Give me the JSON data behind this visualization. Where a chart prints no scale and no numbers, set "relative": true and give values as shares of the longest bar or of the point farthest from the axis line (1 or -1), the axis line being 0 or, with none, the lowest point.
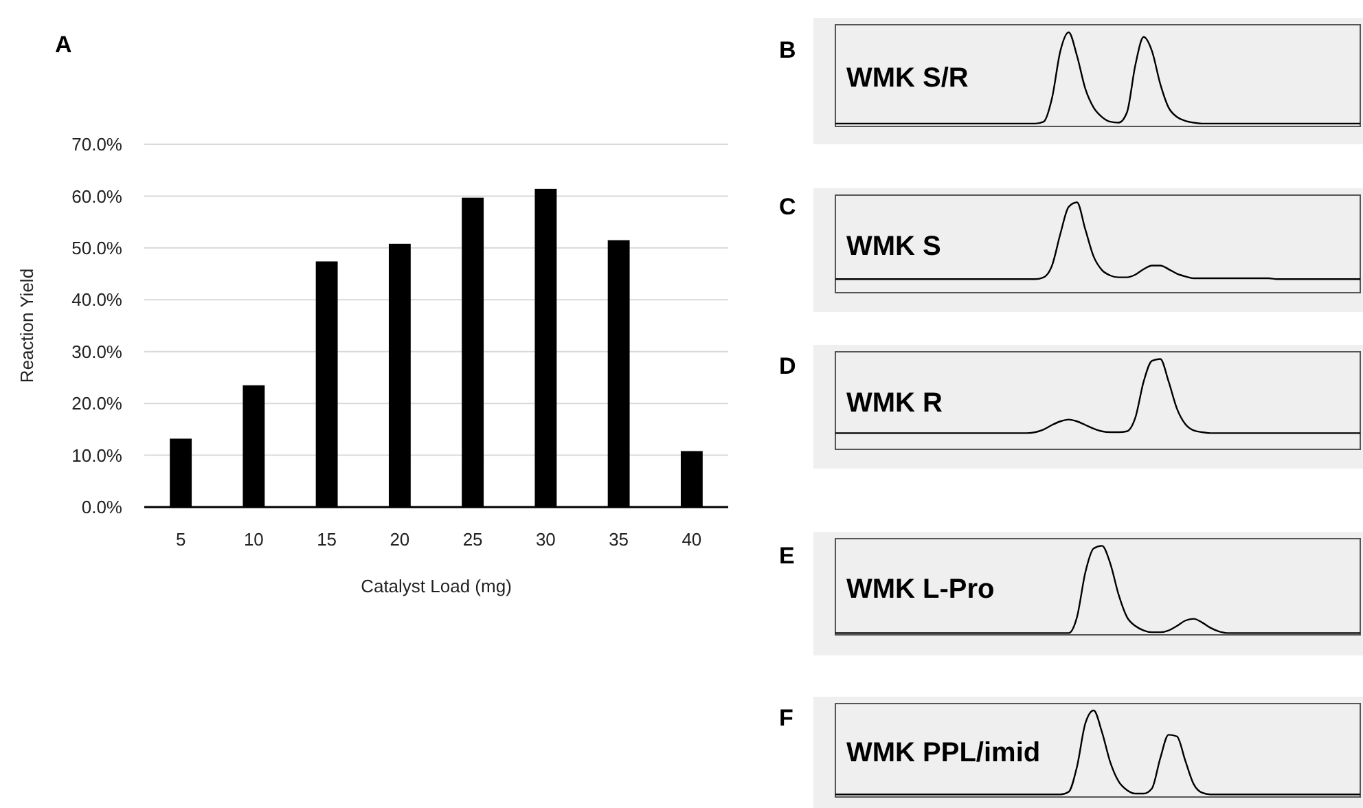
{
  "chart_data": [
    {
      "type": "bar",
      "title": "A",
      "xlabel": "Catalyst Load (mg)",
      "ylabel": "Reaction Yield",
      "categories": [
        "5",
        "10",
        "15",
        "20",
        "25",
        "30",
        "35",
        "40"
      ],
      "values": [
        13.2,
        23.5,
        47.4,
        50.8,
        59.7,
        61.4,
        51.5,
        10.8
      ],
      "color": "#000000",
      "ylim": [
        0,
        70
      ],
      "yticks": [
        {
          "value": 0,
          "label": "0.0%"
        },
        {
          "value": 10,
          "label": "10.0%"
        },
        {
          "value": 20,
          "label": "20.0%"
        },
        {
          "value": 30,
          "label": "30.0%"
        },
        {
          "value": 40,
          "label": "40.0%"
        },
        {
          "value": 50,
          "label": "50.0%"
        },
        {
          "value": 60,
          "label": "60.0%"
        },
        {
          "value": 70,
          "label": "70.0%"
        }
      ],
      "grid": "y"
    },
    {
      "type": "line",
      "title": "B",
      "annotations": [
        "WMK S/R"
      ],
      "relative": true,
      "categories": [
        null,
        null,
        null,
        null,
        null,
        null,
        null,
        null,
        null,
        null,
        null,
        null,
        null,
        null,
        null,
        null,
        null,
        null,
        null,
        null,
        null,
        null,
        null,
        null,
        null,
        null,
        null,
        null,
        null,
        null,
        null,
        null,
        null,
        null,
        null,
        null,
        null,
        null,
        null,
        null,
        null,
        null,
        null,
        null,
        null,
        null,
        null,
        null,
        null,
        null,
        null,
        null,
        null,
        null,
        null,
        null,
        null,
        null,
        null,
        null,
        null,
        null,
        null,
        null
      ],
      "series": [
        {
          "color": "#000000",
          "values": [
            0.03,
            0.03,
            0.03,
            0.03,
            0.03,
            0.03,
            0.03,
            0.03,
            0.03,
            0.03,
            0.03,
            0.03,
            0.03,
            0.03,
            0.03,
            0.03,
            0.03,
            0.03,
            0.03,
            0.03,
            0.03,
            0.03,
            0.03,
            0.03,
            0.03,
            0.05,
            0.3,
            0.8,
            1.0,
            0.75,
            0.4,
            0.2,
            0.1,
            0.05,
            0.04,
            0.15,
            0.65,
            0.95,
            0.8,
            0.45,
            0.2,
            0.1,
            0.06,
            0.04,
            0.03,
            0.03,
            0.03,
            0.03,
            0.03,
            0.03,
            0.03,
            0.03,
            0.03,
            0.03,
            0.03,
            0.03,
            0.03,
            0.03,
            0.03,
            0.03,
            0.03,
            0.03,
            0.03,
            0.03
          ]
        }
      ]
    },
    {
      "type": "line",
      "title": "C",
      "annotations": [
        "WMK S"
      ],
      "relative": true,
      "categories": [
        null,
        null,
        null,
        null,
        null,
        null,
        null,
        null,
        null,
        null,
        null,
        null,
        null,
        null,
        null,
        null,
        null,
        null,
        null,
        null,
        null,
        null,
        null,
        null,
        null,
        null,
        null,
        null,
        null,
        null,
        null,
        null,
        null,
        null,
        null,
        null,
        null,
        null,
        null,
        null,
        null,
        null,
        null,
        null,
        null,
        null,
        null,
        null,
        null,
        null,
        null,
        null,
        null,
        null,
        null,
        null,
        null,
        null,
        null,
        null,
        null,
        null,
        null,
        null
      ],
      "series": [
        {
          "color": "#000000",
          "values": [
            0.15,
            0.15,
            0.15,
            0.15,
            0.15,
            0.15,
            0.15,
            0.15,
            0.15,
            0.15,
            0.15,
            0.15,
            0.15,
            0.15,
            0.15,
            0.15,
            0.15,
            0.15,
            0.15,
            0.15,
            0.15,
            0.15,
            0.15,
            0.15,
            0.15,
            0.17,
            0.3,
            0.65,
            0.95,
            1.0,
            0.7,
            0.4,
            0.25,
            0.19,
            0.17,
            0.17,
            0.2,
            0.26,
            0.3,
            0.3,
            0.26,
            0.21,
            0.18,
            0.16,
            0.16,
            0.16,
            0.16,
            0.16,
            0.16,
            0.16,
            0.16,
            0.16,
            0.16,
            0.15,
            0.15,
            0.15,
            0.15,
            0.15,
            0.15,
            0.15,
            0.15,
            0.15,
            0.15,
            0.15
          ]
        }
      ]
    },
    {
      "type": "line",
      "title": "D",
      "annotations": [
        "WMK R"
      ],
      "relative": true,
      "categories": [
        null,
        null,
        null,
        null,
        null,
        null,
        null,
        null,
        null,
        null,
        null,
        null,
        null,
        null,
        null,
        null,
        null,
        null,
        null,
        null,
        null,
        null,
        null,
        null,
        null,
        null,
        null,
        null,
        null,
        null,
        null,
        null,
        null,
        null,
        null,
        null,
        null,
        null,
        null,
        null,
        null,
        null,
        null,
        null,
        null,
        null,
        null,
        null,
        null,
        null,
        null,
        null,
        null,
        null,
        null,
        null,
        null,
        null,
        null,
        null,
        null,
        null,
        null,
        null
      ],
      "series": [
        {
          "color": "#000000",
          "values": [
            0.18,
            0.18,
            0.18,
            0.18,
            0.18,
            0.18,
            0.18,
            0.18,
            0.18,
            0.18,
            0.18,
            0.18,
            0.18,
            0.18,
            0.18,
            0.18,
            0.18,
            0.18,
            0.18,
            0.18,
            0.18,
            0.18,
            0.18,
            0.18,
            0.19,
            0.22,
            0.27,
            0.31,
            0.33,
            0.31,
            0.27,
            0.23,
            0.2,
            0.19,
            0.19,
            0.2,
            0.35,
            0.75,
            0.98,
            1.0,
            0.75,
            0.45,
            0.28,
            0.21,
            0.19,
            0.18,
            0.18,
            0.18,
            0.18,
            0.18,
            0.18,
            0.18,
            0.18,
            0.18,
            0.18,
            0.18,
            0.18,
            0.18,
            0.18,
            0.18,
            0.18,
            0.18,
            0.18,
            0.18
          ]
        }
      ]
    },
    {
      "type": "line",
      "title": "E",
      "annotations": [
        "WMK L-Pro"
      ],
      "relative": true,
      "categories": [
        null,
        null,
        null,
        null,
        null,
        null,
        null,
        null,
        null,
        null,
        null,
        null,
        null,
        null,
        null,
        null,
        null,
        null,
        null,
        null,
        null,
        null,
        null,
        null,
        null,
        null,
        null,
        null,
        null,
        null,
        null,
        null,
        null,
        null,
        null,
        null,
        null,
        null,
        null,
        null,
        null,
        null,
        null,
        null,
        null,
        null,
        null,
        null,
        null,
        null,
        null,
        null,
        null,
        null,
        null,
        null,
        null,
        null,
        null,
        null,
        null,
        null,
        null,
        null
      ],
      "series": [
        {
          "color": "#000000",
          "values": [
            0.02,
            0.02,
            0.02,
            0.02,
            0.02,
            0.02,
            0.02,
            0.02,
            0.02,
            0.02,
            0.02,
            0.02,
            0.02,
            0.02,
            0.02,
            0.02,
            0.02,
            0.02,
            0.02,
            0.02,
            0.02,
            0.02,
            0.02,
            0.02,
            0.02,
            0.02,
            0.02,
            0.02,
            0.02,
            0.2,
            0.7,
            0.97,
            1.0,
            0.8,
            0.45,
            0.2,
            0.1,
            0.05,
            0.03,
            0.03,
            0.05,
            0.1,
            0.16,
            0.18,
            0.14,
            0.08,
            0.04,
            0.02,
            0.02,
            0.02,
            0.02,
            0.02,
            0.02,
            0.02,
            0.02,
            0.02,
            0.02,
            0.02,
            0.02,
            0.02,
            0.02,
            0.02,
            0.02,
            0.02
          ]
        }
      ]
    },
    {
      "type": "line",
      "title": "F",
      "annotations": [
        "WMK PPL/imid"
      ],
      "relative": true,
      "categories": [
        null,
        null,
        null,
        null,
        null,
        null,
        null,
        null,
        null,
        null,
        null,
        null,
        null,
        null,
        null,
        null,
        null,
        null,
        null,
        null,
        null,
        null,
        null,
        null,
        null,
        null,
        null,
        null,
        null,
        null,
        null,
        null,
        null,
        null,
        null,
        null,
        null,
        null,
        null,
        null,
        null,
        null,
        null,
        null,
        null,
        null,
        null,
        null,
        null,
        null,
        null,
        null,
        null,
        null,
        null,
        null,
        null,
        null,
        null,
        null,
        null,
        null,
        null,
        null
      ],
      "series": [
        {
          "color": "#000000",
          "values": [
            0.03,
            0.03,
            0.03,
            0.03,
            0.03,
            0.03,
            0.03,
            0.03,
            0.03,
            0.03,
            0.03,
            0.03,
            0.03,
            0.03,
            0.03,
            0.03,
            0.03,
            0.03,
            0.03,
            0.03,
            0.03,
            0.03,
            0.03,
            0.03,
            0.03,
            0.03,
            0.03,
            0.03,
            0.06,
            0.35,
            0.85,
            1.0,
            0.75,
            0.4,
            0.18,
            0.08,
            0.04,
            0.04,
            0.1,
            0.45,
            0.72,
            0.7,
            0.42,
            0.15,
            0.05,
            0.03,
            0.03,
            0.03,
            0.03,
            0.03,
            0.03,
            0.03,
            0.03,
            0.03,
            0.03,
            0.03,
            0.03,
            0.03,
            0.03,
            0.03,
            0.03,
            0.03,
            0.03,
            0.03
          ]
        }
      ]
    }
  ]
}
